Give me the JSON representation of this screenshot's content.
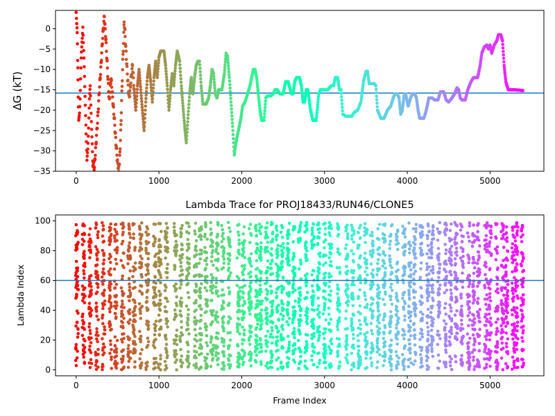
{
  "chart_data": [
    {
      "type": "scatter",
      "title": "",
      "xlabel": "",
      "ylabel": "ΔG (kT)",
      "xlim": [
        -250,
        5650
      ],
      "ylim": [
        -35,
        4.5
      ],
      "xticks": [
        0,
        1000,
        2000,
        3000,
        4000,
        5000
      ],
      "yticks": [
        0,
        -5,
        -10,
        -15,
        -20,
        -25,
        -30,
        -35
      ],
      "xtick_labels": [
        "0",
        "1000",
        "2000",
        "3000",
        "4000",
        "5000"
      ],
      "ytick_labels": [
        "0",
        "−5",
        "−10",
        "−15",
        "−20",
        "−25",
        "−30",
        "−35"
      ],
      "hline": -15.8,
      "hline_color": "#1f77b4",
      "colormap": "rainbow (red at frame 0 → violet at frame 5400)",
      "grid": false,
      "trace_points": [
        [
          0,
          4
        ],
        [
          10,
          1
        ],
        [
          15,
          -4
        ],
        [
          20,
          -10
        ],
        [
          25,
          -16
        ],
        [
          30,
          -23
        ],
        [
          40,
          -20
        ],
        [
          50,
          -15
        ],
        [
          60,
          -8
        ],
        [
          70,
          -3
        ],
        [
          80,
          1
        ],
        [
          90,
          -6
        ],
        [
          100,
          -12
        ],
        [
          110,
          -18
        ],
        [
          120,
          -26
        ],
        [
          130,
          -33
        ],
        [
          140,
          -29
        ],
        [
          150,
          -24
        ],
        [
          160,
          -18
        ],
        [
          170,
          -14
        ],
        [
          180,
          -20
        ],
        [
          190,
          -27
        ],
        [
          200,
          -33
        ],
        [
          220,
          -34
        ],
        [
          240,
          -28
        ],
        [
          260,
          -22
        ],
        [
          280,
          -15
        ],
        [
          300,
          -9
        ],
        [
          320,
          -2
        ],
        [
          340,
          3
        ],
        [
          360,
          -3
        ],
        [
          380,
          -11
        ],
        [
          400,
          -18
        ],
        [
          420,
          -12
        ],
        [
          440,
          -17
        ],
        [
          460,
          -22
        ],
        [
          480,
          -28
        ],
        [
          500,
          -33
        ],
        [
          520,
          -35
        ],
        [
          540,
          -24
        ],
        [
          560,
          -10
        ],
        [
          580,
          2
        ],
        [
          600,
          -5
        ],
        [
          620,
          -12
        ],
        [
          640,
          -17
        ],
        [
          660,
          -13
        ],
        [
          680,
          -9
        ],
        [
          700,
          -15
        ],
        [
          720,
          -20
        ],
        [
          740,
          -14
        ],
        [
          760,
          -10
        ],
        [
          780,
          -15
        ],
        [
          800,
          -20
        ],
        [
          820,
          -25
        ],
        [
          840,
          -18
        ],
        [
          860,
          -12
        ],
        [
          880,
          -9
        ],
        [
          900,
          -13
        ],
        [
          920,
          -18
        ],
        [
          940,
          -12
        ],
        [
          960,
          -8
        ],
        [
          980,
          -12
        ],
        [
          1000,
          -7
        ],
        [
          1020,
          -5.5
        ],
        [
          1060,
          -5.5
        ],
        [
          1080,
          -9
        ],
        [
          1100,
          -14
        ],
        [
          1120,
          -20
        ],
        [
          1140,
          -15
        ],
        [
          1160,
          -11
        ],
        [
          1180,
          -14
        ],
        [
          1200,
          -9
        ],
        [
          1220,
          -5.5
        ],
        [
          1250,
          -8
        ],
        [
          1270,
          -14
        ],
        [
          1290,
          -19
        ],
        [
          1310,
          -24
        ],
        [
          1330,
          -28
        ],
        [
          1350,
          -22
        ],
        [
          1370,
          -16
        ],
        [
          1390,
          -12
        ],
        [
          1410,
          -16
        ],
        [
          1430,
          -12
        ],
        [
          1450,
          -9
        ],
        [
          1470,
          -8
        ],
        [
          1490,
          -8
        ],
        [
          1510,
          -14
        ],
        [
          1530,
          -18.5
        ],
        [
          1570,
          -18.5
        ],
        [
          1600,
          -17
        ],
        [
          1620,
          -14
        ],
        [
          1640,
          -10
        ],
        [
          1660,
          -11
        ],
        [
          1680,
          -16
        ],
        [
          1700,
          -17
        ],
        [
          1720,
          -15
        ],
        [
          1760,
          -15
        ],
        [
          1790,
          -11
        ],
        [
          1810,
          -6
        ],
        [
          1830,
          -7
        ],
        [
          1850,
          -12
        ],
        [
          1870,
          -18
        ],
        [
          1890,
          -24
        ],
        [
          1910,
          -31
        ],
        [
          1930,
          -28
        ],
        [
          1950,
          -26
        ],
        [
          1970,
          -24
        ],
        [
          1990,
          -22
        ],
        [
          2010,
          -19
        ],
        [
          2040,
          -18
        ],
        [
          2070,
          -16
        ],
        [
          2100,
          -14
        ],
        [
          2120,
          -12
        ],
        [
          2140,
          -10
        ],
        [
          2160,
          -10
        ],
        [
          2180,
          -12
        ],
        [
          2200,
          -16
        ],
        [
          2220,
          -20
        ],
        [
          2240,
          -22.5
        ],
        [
          2270,
          -22.5
        ],
        [
          2290,
          -17
        ],
        [
          2310,
          -16.5
        ],
        [
          2350,
          -16.5
        ],
        [
          2380,
          -16
        ],
        [
          2400,
          -15
        ],
        [
          2430,
          -15
        ],
        [
          2460,
          -16
        ],
        [
          2500,
          -16
        ],
        [
          2530,
          -13
        ],
        [
          2560,
          -13
        ],
        [
          2600,
          -16
        ],
        [
          2620,
          -16
        ],
        [
          2640,
          -13
        ],
        [
          2660,
          -12
        ],
        [
          2700,
          -12
        ],
        [
          2720,
          -14
        ],
        [
          2740,
          -18
        ],
        [
          2760,
          -18
        ],
        [
          2780,
          -15
        ],
        [
          2800,
          -15
        ],
        [
          2830,
          -20
        ],
        [
          2860,
          -22.5
        ],
        [
          2900,
          -22.5
        ],
        [
          2930,
          -16
        ],
        [
          2950,
          -15
        ],
        [
          3000,
          -15
        ],
        [
          3040,
          -15
        ],
        [
          3080,
          -14
        ],
        [
          3110,
          -14
        ],
        [
          3130,
          -12
        ],
        [
          3160,
          -12
        ],
        [
          3180,
          -15
        ],
        [
          3200,
          -15
        ],
        [
          3220,
          -21
        ],
        [
          3260,
          -21.5
        ],
        [
          3330,
          -21.5
        ],
        [
          3360,
          -20.5
        ],
        [
          3400,
          -20
        ],
        [
          3440,
          -18
        ],
        [
          3470,
          -13
        ],
        [
          3500,
          -10.5
        ],
        [
          3520,
          -10.5
        ],
        [
          3540,
          -13.5
        ],
        [
          3600,
          -13.5
        ],
        [
          3620,
          -14
        ],
        [
          3640,
          -20
        ],
        [
          3680,
          -22
        ],
        [
          3720,
          -22
        ],
        [
          3760,
          -20
        ],
        [
          3800,
          -19
        ],
        [
          3830,
          -17
        ],
        [
          3850,
          -16
        ],
        [
          3880,
          -16
        ],
        [
          3900,
          -17
        ],
        [
          3920,
          -21
        ],
        [
          3940,
          -20
        ],
        [
          3960,
          -16.5
        ],
        [
          3980,
          -16
        ],
        [
          4010,
          -19
        ],
        [
          4040,
          -17
        ],
        [
          4060,
          -16
        ],
        [
          4090,
          -16
        ],
        [
          4110,
          -17
        ],
        [
          4130,
          -20
        ],
        [
          4150,
          -22
        ],
        [
          4200,
          -22
        ],
        [
          4230,
          -20
        ],
        [
          4260,
          -17
        ],
        [
          4300,
          -17
        ],
        [
          4330,
          -17.5
        ],
        [
          4370,
          -17.5
        ],
        [
          4400,
          -15.5
        ],
        [
          4440,
          -15.5
        ],
        [
          4470,
          -17.5
        ],
        [
          4500,
          -18
        ],
        [
          4540,
          -17
        ],
        [
          4570,
          -16
        ],
        [
          4600,
          -14.5
        ],
        [
          4620,
          -15
        ],
        [
          4640,
          -17
        ],
        [
          4660,
          -17.5
        ],
        [
          4700,
          -17.5
        ],
        [
          4730,
          -15
        ],
        [
          4770,
          -13
        ],
        [
          4800,
          -12
        ],
        [
          4850,
          -12
        ],
        [
          4880,
          -9
        ],
        [
          4900,
          -6
        ],
        [
          4930,
          -4.5
        ],
        [
          4960,
          -4
        ],
        [
          4980,
          -5
        ],
        [
          5000,
          -4
        ],
        [
          5020,
          -6
        ],
        [
          5050,
          -4
        ],
        [
          5080,
          -3
        ],
        [
          5100,
          -1.5
        ],
        [
          5130,
          -1.5
        ],
        [
          5150,
          -3
        ],
        [
          5170,
          -9
        ],
        [
          5190,
          -13
        ],
        [
          5220,
          -15
        ],
        [
          5300,
          -15
        ],
        [
          5400,
          -15.2
        ]
      ]
    },
    {
      "type": "scatter",
      "title": "Lambda Trace for PROJ18433/RUN46/CLONE5",
      "xlabel": "Frame Index",
      "ylabel": "Lambda Index",
      "xlim": [
        -250,
        5650
      ],
      "ylim": [
        -4,
        104
      ],
      "xticks": [
        0,
        1000,
        2000,
        3000,
        4000,
        5000
      ],
      "yticks": [
        0,
        20,
        40,
        60,
        80,
        100
      ],
      "xtick_labels": [
        "0",
        "1000",
        "2000",
        "3000",
        "4000",
        "5000"
      ],
      "ytick_labels": [
        "0",
        "20",
        "40",
        "60",
        "80",
        "100"
      ],
      "hline": 60,
      "hline_color": "#1f77b4",
      "colormap": "rainbow (red at frame 0 → violet at frame 5400)",
      "grid": false,
      "x_range": [
        0,
        5400
      ],
      "y_range": [
        0,
        99
      ],
      "column_centers": [
        10,
        90,
        170,
        250,
        330,
        410,
        480,
        560,
        640,
        700,
        780,
        860,
        950,
        1010,
        1090,
        1200,
        1270,
        1350,
        1440,
        1500,
        1570,
        1640,
        1700,
        1770,
        1850,
        1960,
        2020,
        2100,
        2180,
        2230,
        2300,
        2360,
        2430,
        2490,
        2560,
        2630,
        2700,
        2780,
        2860,
        2930,
        3000,
        3070,
        3170,
        3270,
        3340,
        3420,
        3500,
        3570,
        3650,
        3720,
        3800,
        3880,
        3960,
        4030,
        4090,
        4170,
        4250,
        4300,
        4380,
        4460,
        4520,
        4590,
        4660,
        4740,
        4800,
        4860,
        4950,
        5000,
        5080,
        5150,
        5200,
        5280,
        5320,
        5390
      ]
    }
  ]
}
